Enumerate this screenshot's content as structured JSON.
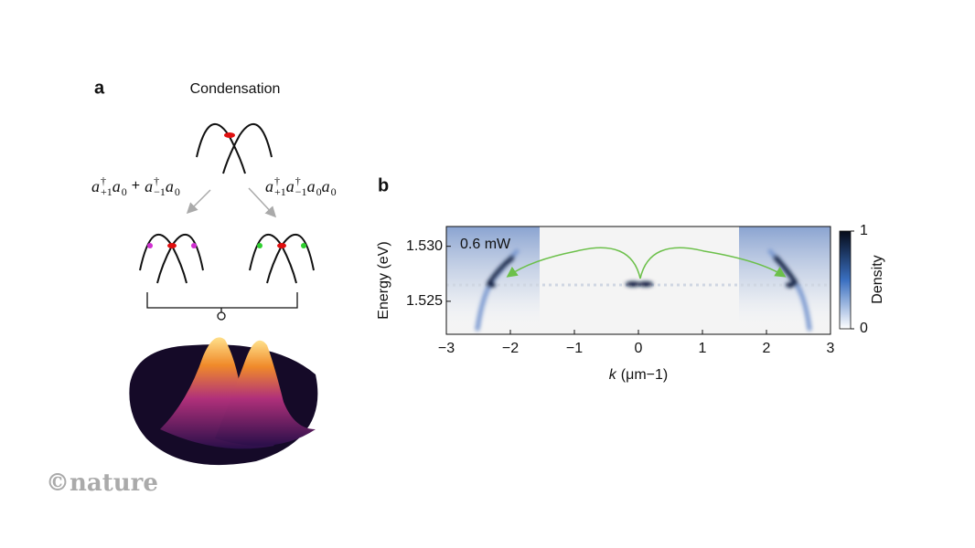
{
  "panel_a": {
    "label": "a",
    "title": "Condensation",
    "left_formula": [
      {
        "base": "a",
        "sup": "†",
        "sub": "+1"
      },
      {
        "base": "a",
        "sub": "0"
      },
      {
        "op": "+"
      },
      {
        "base": "a",
        "sup": "†",
        "sub": "−1"
      },
      {
        "base": "a",
        "sub": "0"
      }
    ],
    "right_formula": [
      {
        "base": "a",
        "sup": "†",
        "sub": "+1"
      },
      {
        "base": "a",
        "sup": "†",
        "sub": "−1"
      },
      {
        "base": "a",
        "sub": "0"
      },
      {
        "base": "a",
        "sub": "0"
      }
    ]
  },
  "panel_b": {
    "label": "b",
    "annotation": "0.6 mW",
    "x_label_var": "k",
    "x_label_unit": "(μm−1)",
    "y_label": "Energy (eV)",
    "xlim": [
      -3,
      3
    ],
    "xticks": [
      {
        "value": -3,
        "label": "−3"
      },
      {
        "value": -2,
        "label": "−2"
      },
      {
        "value": -1,
        "label": "−1"
      },
      0,
      1,
      2,
      3
    ],
    "ylim": [
      1.522,
      1.5318
    ],
    "yticks": [
      1.525,
      {
        "value": 1.53,
        "label": "1.530"
      }
    ],
    "colorbar": {
      "label": "Density",
      "ticks": [
        0,
        1
      ]
    }
  },
  "credit": "©nature"
}
